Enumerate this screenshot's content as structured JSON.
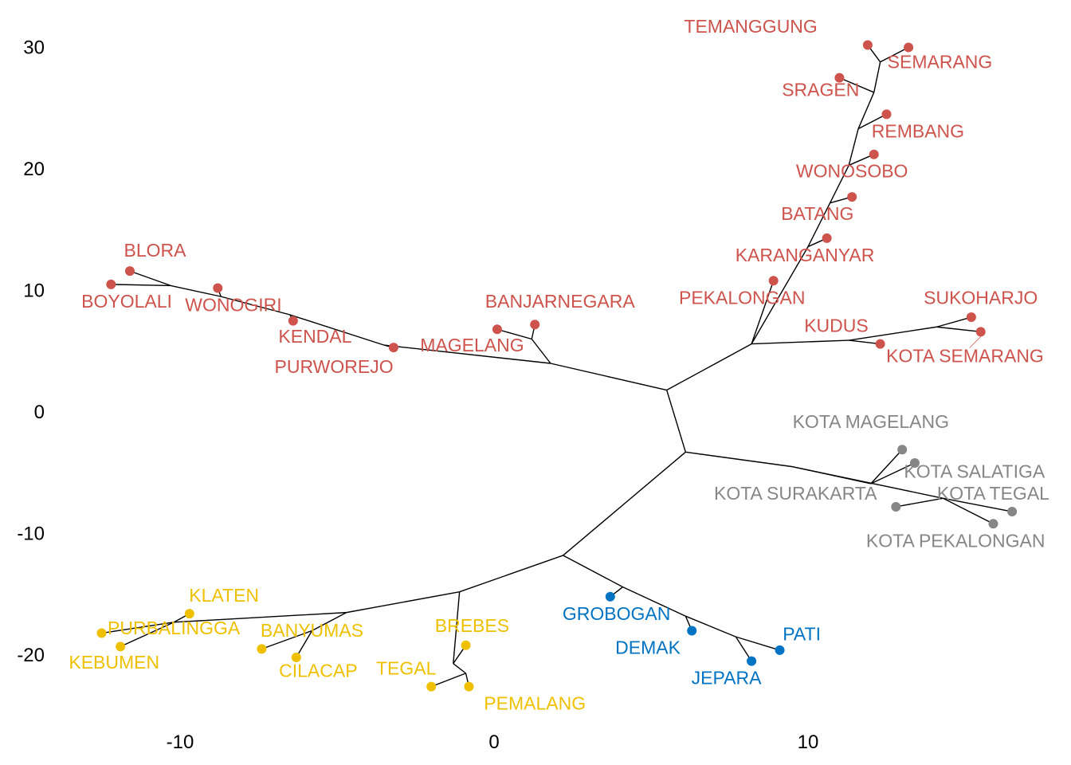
{
  "chart_data": {
    "type": "unrooted-tree",
    "title": "",
    "xlabel": "",
    "ylabel": "",
    "xlim": [
      -15.5,
      17.8
    ],
    "ylim": [
      -26.5,
      32.5
    ],
    "x_ticks": [
      -10,
      0,
      10
    ],
    "y_ticks": [
      -20,
      -10,
      0,
      10,
      20,
      30
    ],
    "grid": false,
    "legend": "none",
    "colors": {
      "red": "#cd534c",
      "gray": "#868686",
      "yellow": "#efc000",
      "blue": "#0073c2"
    },
    "internal_nodes": {
      "root": [
        5.5,
        1.8
      ],
      "R": [
        8.2,
        5.6
      ],
      "S": [
        6.1,
        -3.3
      ],
      "Y": [
        2.2,
        -11.8
      ],
      "Bu": [
        12.1,
        26.3
      ],
      "Tm": [
        12.3,
        28.8
      ],
      "Bs": [
        11.6,
        23.3
      ],
      "Bc": [
        11.3,
        20.3
      ],
      "Bw": [
        10.7,
        17.2
      ],
      "Bx": [
        10.0,
        13.6
      ],
      "Kd": [
        11.3,
        5.9
      ],
      "Kr": [
        14.1,
        7.0
      ],
      "W": [
        1.8,
        4.0
      ],
      "Wb": [
        1.2,
        6.0
      ],
      "Wm": [
        -3.5,
        5.5
      ],
      "Wk": [
        -6.5,
        8.0
      ],
      "Wo": [
        -8.7,
        9.5
      ],
      "Wl": [
        -10.3,
        10.4
      ],
      "Gm": [
        9.5,
        -4.5
      ],
      "Gt": [
        12.0,
        -5.9
      ],
      "Gk": [
        14.3,
        -7.1
      ],
      "Yl": [
        -1.1,
        -14.8
      ],
      "Ya": [
        -4.7,
        -16.5
      ],
      "Yk": [
        -10.2,
        -17.3
      ],
      "Yc": [
        -5.8,
        -18.0
      ],
      "Yg": [
        -1.3,
        -20.7
      ],
      "Yt": [
        -0.9,
        -21.5
      ],
      "B1": [
        4.1,
        -14.4
      ],
      "B2": [
        6.1,
        -16.8
      ],
      "B3": [
        7.7,
        -18.5
      ]
    },
    "edges": [
      [
        "root",
        "R"
      ],
      [
        "root",
        "S"
      ],
      [
        "S",
        "Y"
      ],
      [
        "R",
        "Bx"
      ],
      [
        "Bx",
        "Bw"
      ],
      [
        "Bw",
        "Bc"
      ],
      [
        "Bc",
        "Bs"
      ],
      [
        "Bs",
        "Bu"
      ],
      [
        "Bu",
        "Tm"
      ],
      [
        "R",
        "Kd"
      ],
      [
        "Kd",
        "Kr"
      ],
      [
        "root",
        "W"
      ],
      [
        "W",
        "Wb"
      ],
      [
        "W",
        "Wm"
      ],
      [
        "Wm",
        "Wk"
      ],
      [
        "Wk",
        "Wo"
      ],
      [
        "Wo",
        "Wl"
      ],
      [
        "S",
        "Gm"
      ],
      [
        "Gm",
        "Gt"
      ],
      [
        "Gm",
        "Gk"
      ],
      [
        "Y",
        "Yl"
      ],
      [
        "Yl",
        "Ya"
      ],
      [
        "Ya",
        "Yk"
      ],
      [
        "Ya",
        "Yc"
      ],
      [
        "Yl",
        "Yg"
      ],
      [
        "Yg",
        "Yt"
      ],
      [
        "Y",
        "B1"
      ],
      [
        "B1",
        "B2"
      ],
      [
        "B2",
        "B3"
      ]
    ],
    "tips": [
      {
        "name": "TEMANGGUNG",
        "group": "red",
        "x": 11.9,
        "y": 30.2,
        "parent": "Tm",
        "lx": 10.3,
        "ly": 31.2,
        "anchor": "end"
      },
      {
        "name": "SEMARANG",
        "group": "red",
        "x": 13.2,
        "y": 30.0,
        "parent": "Tm",
        "lx": 14.2,
        "ly": 28.3,
        "anchor": "middle"
      },
      {
        "name": "SRAGEN",
        "group": "red",
        "x": 11.0,
        "y": 27.5,
        "parent": "Bu",
        "lx": 10.4,
        "ly": 26.0,
        "anchor": "middle"
      },
      {
        "name": "REMBANG",
        "group": "red",
        "x": 12.5,
        "y": 24.5,
        "parent": "Bs",
        "lx": 13.5,
        "ly": 22.6,
        "anchor": "middle"
      },
      {
        "name": "WONOSOBO",
        "group": "red",
        "x": 12.1,
        "y": 21.2,
        "parent": "Bc",
        "lx": 11.4,
        "ly": 19.3,
        "anchor": "middle"
      },
      {
        "name": "BATANG",
        "group": "red",
        "x": 11.4,
        "y": 17.7,
        "parent": "Bw",
        "lx": 10.3,
        "ly": 15.8,
        "anchor": "middle"
      },
      {
        "name": "KARANGANYAR",
        "group": "red",
        "x": 10.6,
        "y": 14.3,
        "parent": "Bx",
        "lx": 9.9,
        "ly": 12.4,
        "anchor": "middle"
      },
      {
        "name": "PEKALONGAN",
        "group": "red",
        "x": 8.9,
        "y": 10.8,
        "parent": "R",
        "lx": 7.9,
        "ly": 8.9,
        "anchor": "middle"
      },
      {
        "name": "KUDUS",
        "group": "red",
        "x": 12.3,
        "y": 5.6,
        "parent": "Kd",
        "lx": 10.9,
        "ly": 6.6,
        "anchor": "middle"
      },
      {
        "name": "SUKOHARJO",
        "group": "red",
        "x": 15.2,
        "y": 7.8,
        "parent": "Kr",
        "lx": 15.5,
        "ly": 8.9,
        "anchor": "middle"
      },
      {
        "name": "KOTA SEMARANG",
        "group": "red",
        "x": 15.5,
        "y": 6.6,
        "parent": "Kr",
        "lx": 15.0,
        "ly": 4.1,
        "anchor": "middle"
      },
      {
        "name": "BANJARNEGARA",
        "group": "red",
        "x": 1.3,
        "y": 7.2,
        "parent": "Wb",
        "lx": 2.1,
        "ly": 8.6,
        "anchor": "middle"
      },
      {
        "name": "MAGELANG",
        "group": "red",
        "x": 0.1,
        "y": 6.8,
        "parent": "Wb",
        "lx": -0.7,
        "ly": 5.0,
        "anchor": "middle"
      },
      {
        "name": "PURWOREJO",
        "group": "red",
        "x": -3.2,
        "y": 5.3,
        "parent": "Wm",
        "lx": -5.1,
        "ly": 3.2,
        "anchor": "middle"
      },
      {
        "name": "KENDAL",
        "group": "red",
        "x": -6.4,
        "y": 7.5,
        "parent": "Wk",
        "lx": -5.7,
        "ly": 5.7,
        "anchor": "middle"
      },
      {
        "name": "WONOGIRI",
        "group": "red",
        "x": -8.8,
        "y": 10.2,
        "parent": "Wo",
        "lx": -8.3,
        "ly": 8.3,
        "anchor": "middle"
      },
      {
        "name": "BLORA",
        "group": "red",
        "x": -11.6,
        "y": 11.6,
        "parent": "Wl",
        "lx": -10.8,
        "ly": 12.8,
        "anchor": "middle"
      },
      {
        "name": "BOYOLALI",
        "group": "red",
        "x": -12.2,
        "y": 10.5,
        "parent": "Wl",
        "lx": -11.7,
        "ly": 8.6,
        "anchor": "middle"
      },
      {
        "name": "KOTA MAGELANG",
        "group": "gray",
        "x": 13.0,
        "y": -3.1,
        "parent": "Gt",
        "lx": 12.0,
        "ly": -1.3,
        "anchor": "middle"
      },
      {
        "name": "KOTA SALATIGA",
        "group": "gray",
        "x": 13.4,
        "y": -4.2,
        "parent": "Gt",
        "lx": 15.3,
        "ly": -5.4,
        "anchor": "middle"
      },
      {
        "name": "KOTA SURAKARTA",
        "group": "gray",
        "x": 12.8,
        "y": -7.8,
        "parent": "Gk",
        "lx": 9.6,
        "ly": -7.2,
        "anchor": "middle"
      },
      {
        "name": "KOTA TEGAL",
        "group": "gray",
        "x": 16.5,
        "y": -8.2,
        "parent": "Gk",
        "lx": 15.9,
        "ly": -7.2,
        "anchor": "middle"
      },
      {
        "name": "KOTA PEKALONGAN",
        "group": "gray",
        "x": 15.9,
        "y": -9.2,
        "parent": "Gk",
        "lx": 14.7,
        "ly": -11.1,
        "anchor": "middle"
      },
      {
        "name": "GROBOGAN",
        "group": "blue",
        "x": 3.7,
        "y": -15.2,
        "parent": "B1",
        "lx": 3.9,
        "ly": -17.1,
        "anchor": "middle"
      },
      {
        "name": "DEMAK",
        "group": "blue",
        "x": 6.3,
        "y": -18.0,
        "parent": "B2",
        "lx": 4.9,
        "ly": -19.9,
        "anchor": "middle"
      },
      {
        "name": "JEPARA",
        "group": "blue",
        "x": 8.2,
        "y": -20.5,
        "parent": "B3",
        "lx": 7.4,
        "ly": -22.4,
        "anchor": "middle"
      },
      {
        "name": "PATI",
        "group": "blue",
        "x": 9.1,
        "y": -19.6,
        "parent": "B3",
        "lx": 9.8,
        "ly": -18.8,
        "anchor": "middle"
      },
      {
        "name": "KLATEN",
        "group": "yellow",
        "x": -9.7,
        "y": -16.6,
        "parent": "Yk",
        "lx": -8.6,
        "ly": -15.6,
        "anchor": "middle"
      },
      {
        "name": "PURBALINGGA",
        "group": "yellow",
        "x": -12.5,
        "y": -18.2,
        "parent": "Yk",
        "lx": -10.2,
        "ly": -18.3,
        "anchor": "middle"
      },
      {
        "name": "KEBUMEN",
        "group": "yellow",
        "x": -11.9,
        "y": -19.3,
        "parent": "Yk",
        "lx": -12.1,
        "ly": -21.1,
        "anchor": "middle"
      },
      {
        "name": "BANYUMAS",
        "group": "yellow",
        "x": -7.4,
        "y": -19.5,
        "parent": "Yc",
        "lx": -5.8,
        "ly": -18.5,
        "anchor": "middle"
      },
      {
        "name": "CILACAP",
        "group": "yellow",
        "x": -6.3,
        "y": -20.2,
        "parent": "Yc",
        "lx": -5.6,
        "ly": -21.8,
        "anchor": "middle"
      },
      {
        "name": "BREBES",
        "group": "yellow",
        "x": -0.9,
        "y": -19.2,
        "parent": "Yg",
        "lx": -0.7,
        "ly": -18.1,
        "anchor": "middle"
      },
      {
        "name": "TEGAL",
        "group": "yellow",
        "x": -2.0,
        "y": -22.6,
        "parent": "Yt",
        "lx": -2.8,
        "ly": -21.6,
        "anchor": "middle"
      },
      {
        "name": "PEMALANG",
        "group": "yellow",
        "x": -0.8,
        "y": -22.6,
        "parent": "Yt",
        "lx": 1.3,
        "ly": -24.5,
        "anchor": "middle"
      }
    ],
    "leader_lines": [
      [
        "KOTA SEMARANG"
      ]
    ]
  }
}
